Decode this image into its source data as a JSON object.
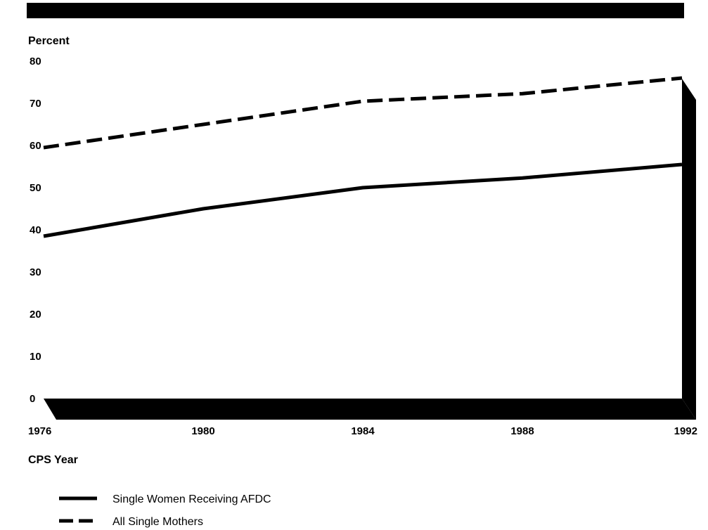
{
  "chart_data": {
    "type": "line",
    "ylabel": "Percent",
    "xlabel": "CPS Year",
    "ylim": [
      0,
      80
    ],
    "y_ticks": [
      0,
      10,
      20,
      30,
      40,
      50,
      60,
      70,
      80
    ],
    "xlim": [
      1976,
      1992
    ],
    "x_ticks": [
      1976,
      1980,
      1984,
      1988,
      1992
    ],
    "grid": false,
    "legend_position": "bottom-left",
    "series": [
      {
        "name": "Single Women Receiving AFDC",
        "style": "solid",
        "x": [
          1976,
          1980,
          1984,
          1988,
          1992
        ],
        "values": [
          38.5,
          45,
          50,
          52.3,
          55.5
        ]
      },
      {
        "name": "All Single Mothers",
        "style": "dashed",
        "x": [
          1976,
          1980,
          1984,
          1988,
          1992
        ],
        "values": [
          59.5,
          65,
          70.5,
          72.3,
          76
        ]
      }
    ],
    "colors": {
      "line": "#000000",
      "frame": "#000000",
      "background": "#ffffff"
    }
  }
}
